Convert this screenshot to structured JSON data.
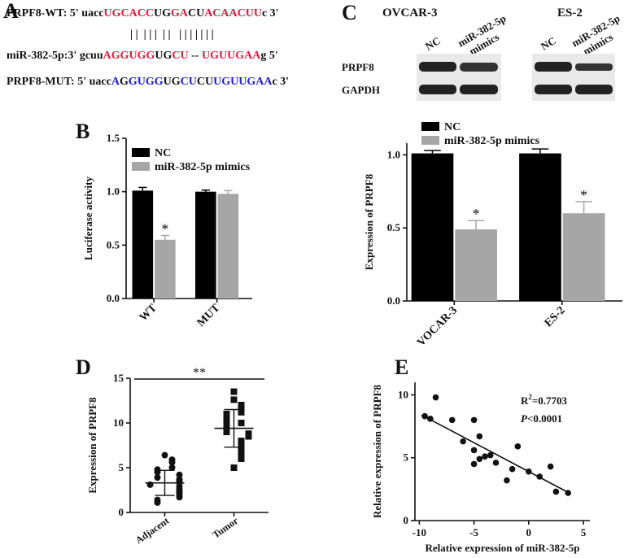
{
  "panels": [
    "A",
    "B",
    "C",
    "D",
    "E"
  ],
  "sequences": [
    [
      {
        "text": "PRPF8-WT: 5' uacc",
        "color": "#111111"
      },
      {
        "text": "UGCACC",
        "color": "#e8173c"
      },
      {
        "text": "UG",
        "color": "#111111"
      },
      {
        "text": "GA",
        "color": "#e8173c"
      },
      {
        "text": "CU",
        "color": "#111111"
      },
      {
        "text": "ACAACUU",
        "color": "#e8173c"
      },
      {
        "text": "c 3'",
        "color": "#111111"
      }
    ],
    [
      {
        "text": "| |  | | |  | |   | | | | | | |",
        "color": "#111111"
      }
    ],
    [
      {
        "text": "miR-382-5p:3' gcuu",
        "color": "#111111"
      },
      {
        "text": "AGGUGG",
        "color": "#e8173c"
      },
      {
        "text": "UG",
        "color": "#111111"
      },
      {
        "text": "CU",
        "color": "#e8173c"
      },
      {
        "text": " -- ",
        "color": "#111111"
      },
      {
        "text": "UGUUGAA",
        "color": "#e8173c"
      },
      {
        "text": "g 5'",
        "color": "#111111"
      }
    ],
    [
      {
        "text": "PRPF8-MUT: 5' uacc",
        "color": "#111111"
      },
      {
        "text": "A",
        "color": "#1a1adb"
      },
      {
        "text": "G",
        "color": "#111111"
      },
      {
        "text": "GUGG",
        "color": "#1a1adb"
      },
      {
        "text": "UG",
        "color": "#111111"
      },
      {
        "text": "CU",
        "color": "#1a1adb"
      },
      {
        "text": "CU",
        "color": "#111111"
      },
      {
        "text": "UGUUGAA",
        "color": "#1a1adb"
      },
      {
        "text": "c 3'",
        "color": "#111111"
      }
    ]
  ],
  "blot": {
    "cell_lines": [
      "OVCAR-3",
      "ES-2"
    ],
    "lanes": [
      "NC",
      "miR-382-5p",
      "mimics"
    ],
    "proteins": [
      "PRPF8",
      "GAPDH"
    ]
  },
  "chart_data": [
    {
      "type": "bar",
      "ylabel": "Luciferase activity",
      "categories": [
        "WT",
        "MUT"
      ],
      "ylim": [
        0,
        1.5
      ],
      "yticks": [
        {
          "value": 0,
          "label": "0.0"
        },
        {
          "value": 0.5,
          "label": "0.5"
        },
        {
          "value": 1,
          "label": "1.0"
        },
        {
          "value": 1.5,
          "label": "1.5"
        }
      ],
      "series": [
        {
          "name": "NC",
          "color": "#000000",
          "values": [
            1.01,
            1.0
          ],
          "errors": [
            0.03,
            0.015
          ],
          "annotations": [
            null,
            null
          ]
        },
        {
          "name": "miR-382-5p mimics",
          "color": "#a6a6a6",
          "values": [
            0.55,
            0.98
          ],
          "errors": [
            0.04,
            0.03
          ],
          "annotations": [
            "*",
            null
          ]
        }
      ]
    },
    {
      "type": "bar",
      "ylabel": "Expression of PRPF8",
      "categories": [
        "VOCAR-3",
        "ES-2"
      ],
      "ylim": [
        0,
        1.08
      ],
      "yticks": [
        {
          "value": 0,
          "label": "0.0"
        },
        {
          "value": 0.5,
          "label": "0.5"
        },
        {
          "value": 1,
          "label": "1.0"
        }
      ],
      "series": [
        {
          "name": "NC",
          "color": "#000000",
          "values": [
            1.01,
            1.01
          ],
          "errors": [
            0.02,
            0.03
          ],
          "annotations": [
            null,
            null
          ]
        },
        {
          "name": "miR-382-5p mimics",
          "color": "#a6a6a6",
          "values": [
            0.49,
            0.6
          ],
          "errors": [
            0.06,
            0.08
          ],
          "annotations": [
            "*",
            "*"
          ]
        }
      ]
    },
    {
      "type": "dot",
      "ylabel": "Expression of PRPF8",
      "categories": [
        "Adjacent",
        "Tumor"
      ],
      "ylim": [
        0,
        15
      ],
      "yticks": [
        0,
        5,
        10,
        15
      ],
      "significance": "**",
      "values": [
        [
          6.4,
          5.9,
          5.6,
          5.0,
          4.8,
          4.5,
          4.2,
          3.9,
          3.7,
          3.5,
          3.3,
          3.1,
          2.9,
          2.6,
          2.4,
          2.2,
          2.0,
          1.7,
          1.4,
          1.1
        ],
        [
          13.5,
          12.6,
          12.0,
          11.5,
          11.2,
          11.0,
          10.5,
          10.0,
          9.8,
          9.5,
          9.2,
          9.0,
          8.8,
          8.5,
          8.0,
          7.5,
          7.0,
          6.5,
          6.0,
          5.0
        ]
      ],
      "means": [
        3.3,
        9.4
      ],
      "sd": [
        1.4,
        2.1
      ]
    },
    {
      "type": "scatter",
      "xlabel": "Relative expression of miR-382-5p",
      "ylabel": "Relative expression of PRPF8",
      "xlim": [
        -10.4,
        5
      ],
      "xticks": [
        -10,
        -5,
        0,
        5
      ],
      "ylim": [
        0,
        11
      ],
      "yticks": [
        0,
        5,
        10
      ],
      "x": [
        -9.5,
        -9,
        -8.5,
        -7,
        -6,
        -5,
        -5,
        -4.5,
        -4,
        -5,
        -3.5,
        -3,
        -2,
        -1,
        -1.5,
        0,
        1,
        2,
        2.5,
        3.6,
        -4.5
      ],
      "y": [
        8.3,
        8.1,
        9.8,
        8.0,
        6.3,
        8.0,
        5.6,
        6.7,
        5.1,
        4.5,
        5.2,
        4.6,
        3.2,
        5.9,
        4.1,
        3.9,
        3.5,
        4.3,
        2.3,
        2.2,
        4.9
      ],
      "fit": {
        "x": [
          -9.8,
          3.7
        ],
        "y": [
          8.4,
          2.2
        ]
      },
      "r2": {
        "base": "R",
        "sup": "2",
        "rest": "=0.7703"
      },
      "p": {
        "symbol": "P",
        "rest": "<0.0001"
      }
    }
  ]
}
